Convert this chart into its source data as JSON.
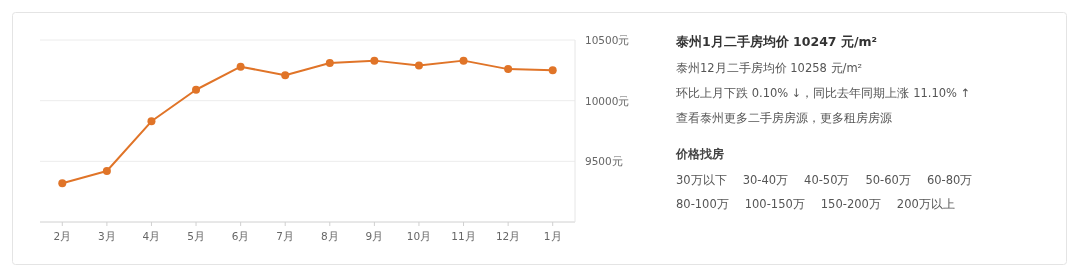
{
  "chart_data": [
    {
      "type": "line",
      "categories": [
        "2月",
        "3月",
        "4月",
        "5月",
        "6月",
        "7月",
        "8月",
        "9月",
        "10月",
        "11月",
        "12月",
        "1月"
      ],
      "values": [
        9320,
        9420,
        9830,
        10090,
        10280,
        10210,
        10310,
        10330,
        10290,
        10330,
        10260,
        10250
      ],
      "color": "#e07428",
      "marker": "circle",
      "grid": "y",
      "ylim": [
        9000,
        10500
      ],
      "yticks": [
        {
          "value": 9500,
          "label": "9500元"
        },
        {
          "value": 10000,
          "label": "10000元"
        },
        {
          "value": 10500,
          "label": "10500元"
        }
      ]
    },
    {
      "type": "other",
      "title": "泰州1月二手房均价 10247 元/m²",
      "annotations": [
        "泰州12月二手房均价 10258 元/m²",
        "环比上月下跌 0.10% ↓，同比去年同期上涨 11.10% ↑",
        "查看泰州更多二手房房源，更多租房房源",
        "价格找房",
        "30万以下",
        "30-40万",
        "40-50万",
        "50-60万",
        "60-80万",
        "80-100万",
        "100-150万",
        "150-200万",
        "200万以上"
      ]
    }
  ]
}
